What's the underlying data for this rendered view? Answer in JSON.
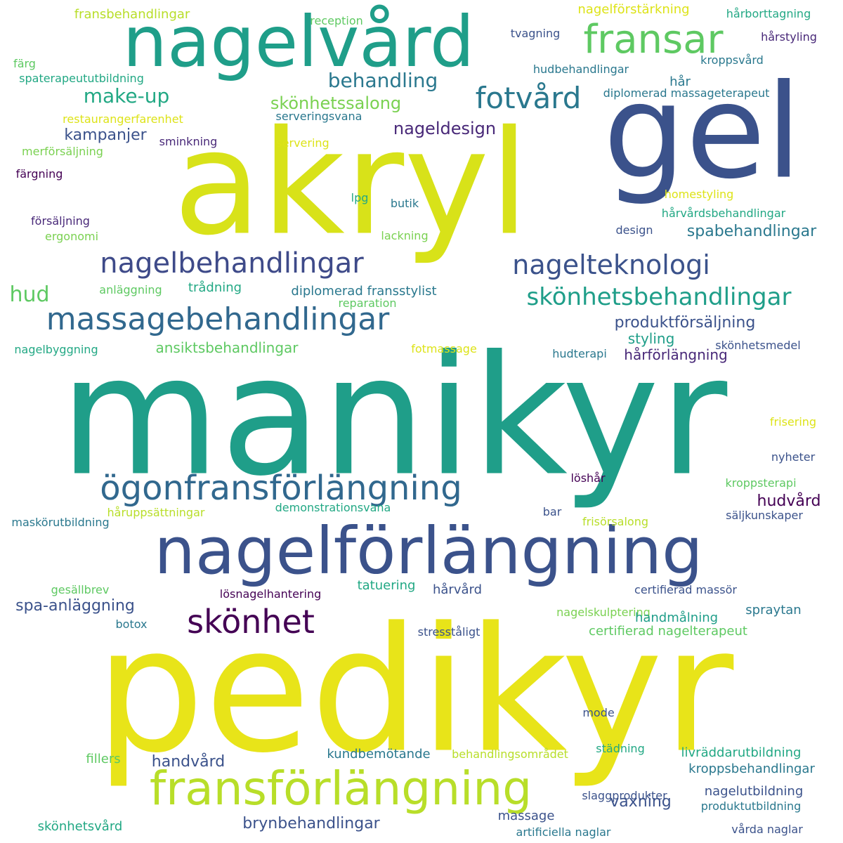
{
  "palette": {
    "yellow": "#dde318",
    "yellow_green": "#b8de29",
    "light_green": "#7ad151",
    "green": "#5ec962",
    "teal": "#1f9e89",
    "teal_light": "#22a884",
    "blue_teal": "#2a788e",
    "blue": "#31688e",
    "indigo": "#3b528b",
    "purple": "#482878",
    "dark_purple": "#440154"
  },
  "words": [
    {
      "text": "manikyr",
      "color": "#1f9e89"
    },
    {
      "text": "pedikyr",
      "color": "#e8e419"
    },
    {
      "text": "akryl",
      "color": "#d8e219"
    },
    {
      "text": "gel",
      "color": "#3b528b"
    },
    {
      "text": "nagelvård",
      "color": "#1f9e89"
    },
    {
      "text": "nagelförlängning",
      "color": "#3b528b"
    },
    {
      "text": "fransförlängning",
      "color": "#b8de29"
    },
    {
      "text": "ögonfransförlängning",
      "color": "#31688e"
    },
    {
      "text": "massagebehandlingar",
      "color": "#31688e"
    },
    {
      "text": "nagelbehandlingar",
      "color": "#3e4a89"
    },
    {
      "text": "fransar",
      "color": "#5ec962"
    },
    {
      "text": "fotvård",
      "color": "#2a788e"
    },
    {
      "text": "nagelteknologi",
      "color": "#3b528b"
    },
    {
      "text": "skönhetsbehandlingar",
      "color": "#1f9e89"
    },
    {
      "text": "skönhet",
      "color": "#440154"
    },
    {
      "text": "behandling",
      "color": "#2a788e"
    },
    {
      "text": "make-up",
      "color": "#22a884"
    },
    {
      "text": "hud",
      "color": "#5ec962"
    },
    {
      "text": "spabehandlingar",
      "color": "#2a788e"
    },
    {
      "text": "nageldesign",
      "color": "#482878"
    },
    {
      "text": "skönhetssalong",
      "color": "#7ad151"
    },
    {
      "text": "kampanjer",
      "color": "#3b528b"
    },
    {
      "text": "produktförsäljning",
      "color": "#3b528b"
    },
    {
      "text": "ansiktsbehandlingar",
      "color": "#5ec962"
    },
    {
      "text": "styling",
      "color": "#1f9e89"
    },
    {
      "text": "hårförlängning",
      "color": "#482878"
    },
    {
      "text": "hudvård",
      "color": "#440154"
    },
    {
      "text": "spa-anläggning",
      "color": "#3b528b"
    },
    {
      "text": "brynbehandlingar",
      "color": "#3b528b"
    },
    {
      "text": "vaxning",
      "color": "#3b528b"
    },
    {
      "text": "handvård",
      "color": "#3b528b"
    },
    {
      "text": "kroppsbehandlingar",
      "color": "#2a788e"
    },
    {
      "text": "fransbehandlingar",
      "color": "#b8de29"
    },
    {
      "text": "nagelförstärkning",
      "color": "#dde318"
    },
    {
      "text": "reception",
      "color": "#5ec962"
    },
    {
      "text": "hårborttagning",
      "color": "#22a884"
    },
    {
      "text": "tvagning",
      "color": "#3b528b"
    },
    {
      "text": "hårstyling",
      "color": "#482878"
    },
    {
      "text": "färg",
      "color": "#5ec962"
    },
    {
      "text": "spaterapeututbildning",
      "color": "#22a884"
    },
    {
      "text": "kroppsvård",
      "color": "#2a788e"
    },
    {
      "text": "hudbehandlingar",
      "color": "#2a788e"
    },
    {
      "text": "hår",
      "color": "#2a788e"
    },
    {
      "text": "diplomerad massageterapeut",
      "color": "#2a788e"
    },
    {
      "text": "restaurangerfarenhet",
      "color": "#dde318"
    },
    {
      "text": "serveringsvana",
      "color": "#2a788e"
    },
    {
      "text": "sminkning",
      "color": "#482878"
    },
    {
      "text": "servering",
      "color": "#dde318"
    },
    {
      "text": "merförsäljning",
      "color": "#7ad151"
    },
    {
      "text": "färgning",
      "color": "#440154"
    },
    {
      "text": "homestyling",
      "color": "#dde318"
    },
    {
      "text": "lpg",
      "color": "#22a884"
    },
    {
      "text": "butik",
      "color": "#2a788e"
    },
    {
      "text": "hårvårdsbehandlingar",
      "color": "#22a884"
    },
    {
      "text": "försäljning",
      "color": "#482878"
    },
    {
      "text": "design",
      "color": "#3b528b"
    },
    {
      "text": "ergonomi",
      "color": "#7ad151"
    },
    {
      "text": "lackning",
      "color": "#7ad151"
    },
    {
      "text": "anläggning",
      "color": "#5ec962"
    },
    {
      "text": "trådning",
      "color": "#22a884"
    },
    {
      "text": "diplomerad fransstylist",
      "color": "#2a788e"
    },
    {
      "text": "reparation",
      "color": "#5ec962"
    },
    {
      "text": "nagelbyggning",
      "color": "#22a884"
    },
    {
      "text": "fotmassage",
      "color": "#dde318"
    },
    {
      "text": "hudterapi",
      "color": "#2a788e"
    },
    {
      "text": "skönhetsmedel",
      "color": "#3b528b"
    },
    {
      "text": "frisering",
      "color": "#dde318"
    },
    {
      "text": "nyheter",
      "color": "#3b528b"
    },
    {
      "text": "löshår",
      "color": "#440154"
    },
    {
      "text": "kroppsterapi",
      "color": "#5ec962"
    },
    {
      "text": "håruppsättningar",
      "color": "#b8de29"
    },
    {
      "text": "demonstrationsvana",
      "color": "#22a884"
    },
    {
      "text": "maskörutbildning",
      "color": "#2a788e"
    },
    {
      "text": "bar",
      "color": "#3b528b"
    },
    {
      "text": "frisörsalong",
      "color": "#b8de29"
    },
    {
      "text": "säljkunskaper",
      "color": "#3b528b"
    },
    {
      "text": "gesällbrev",
      "color": "#5ec962"
    },
    {
      "text": "lösnagelhantering",
      "color": "#440154"
    },
    {
      "text": "tatuering",
      "color": "#22a884"
    },
    {
      "text": "hårvård",
      "color": "#3b528b"
    },
    {
      "text": "certifierad massör",
      "color": "#3b528b"
    },
    {
      "text": "nagelskulptering",
      "color": "#7ad151"
    },
    {
      "text": "handmålning",
      "color": "#1f9e89"
    },
    {
      "text": "spraytan",
      "color": "#2a788e"
    },
    {
      "text": "botox",
      "color": "#2a788e"
    },
    {
      "text": "stresståligt",
      "color": "#3b528b"
    },
    {
      "text": "certifierad nagelterapeut",
      "color": "#5ec962"
    },
    {
      "text": "mode",
      "color": "#3b528b"
    },
    {
      "text": "städning",
      "color": "#22a884"
    },
    {
      "text": "fillers",
      "color": "#5ec962"
    },
    {
      "text": "kundbemötande",
      "color": "#2a788e"
    },
    {
      "text": "behandlingsområdet",
      "color": "#b8de29"
    },
    {
      "text": "livräddarutbildning",
      "color": "#22a884"
    },
    {
      "text": "nagelutbildning",
      "color": "#3b528b"
    },
    {
      "text": "slaggprodukter",
      "color": "#3b528b"
    },
    {
      "text": "produktutbildning",
      "color": "#2a788e"
    },
    {
      "text": "massage",
      "color": "#3b528b"
    },
    {
      "text": "skönhetsvård",
      "color": "#22a884"
    },
    {
      "text": "artificiella naglar",
      "color": "#2a788e"
    },
    {
      "text": "vårda naglar",
      "color": "#3b528b"
    }
  ]
}
